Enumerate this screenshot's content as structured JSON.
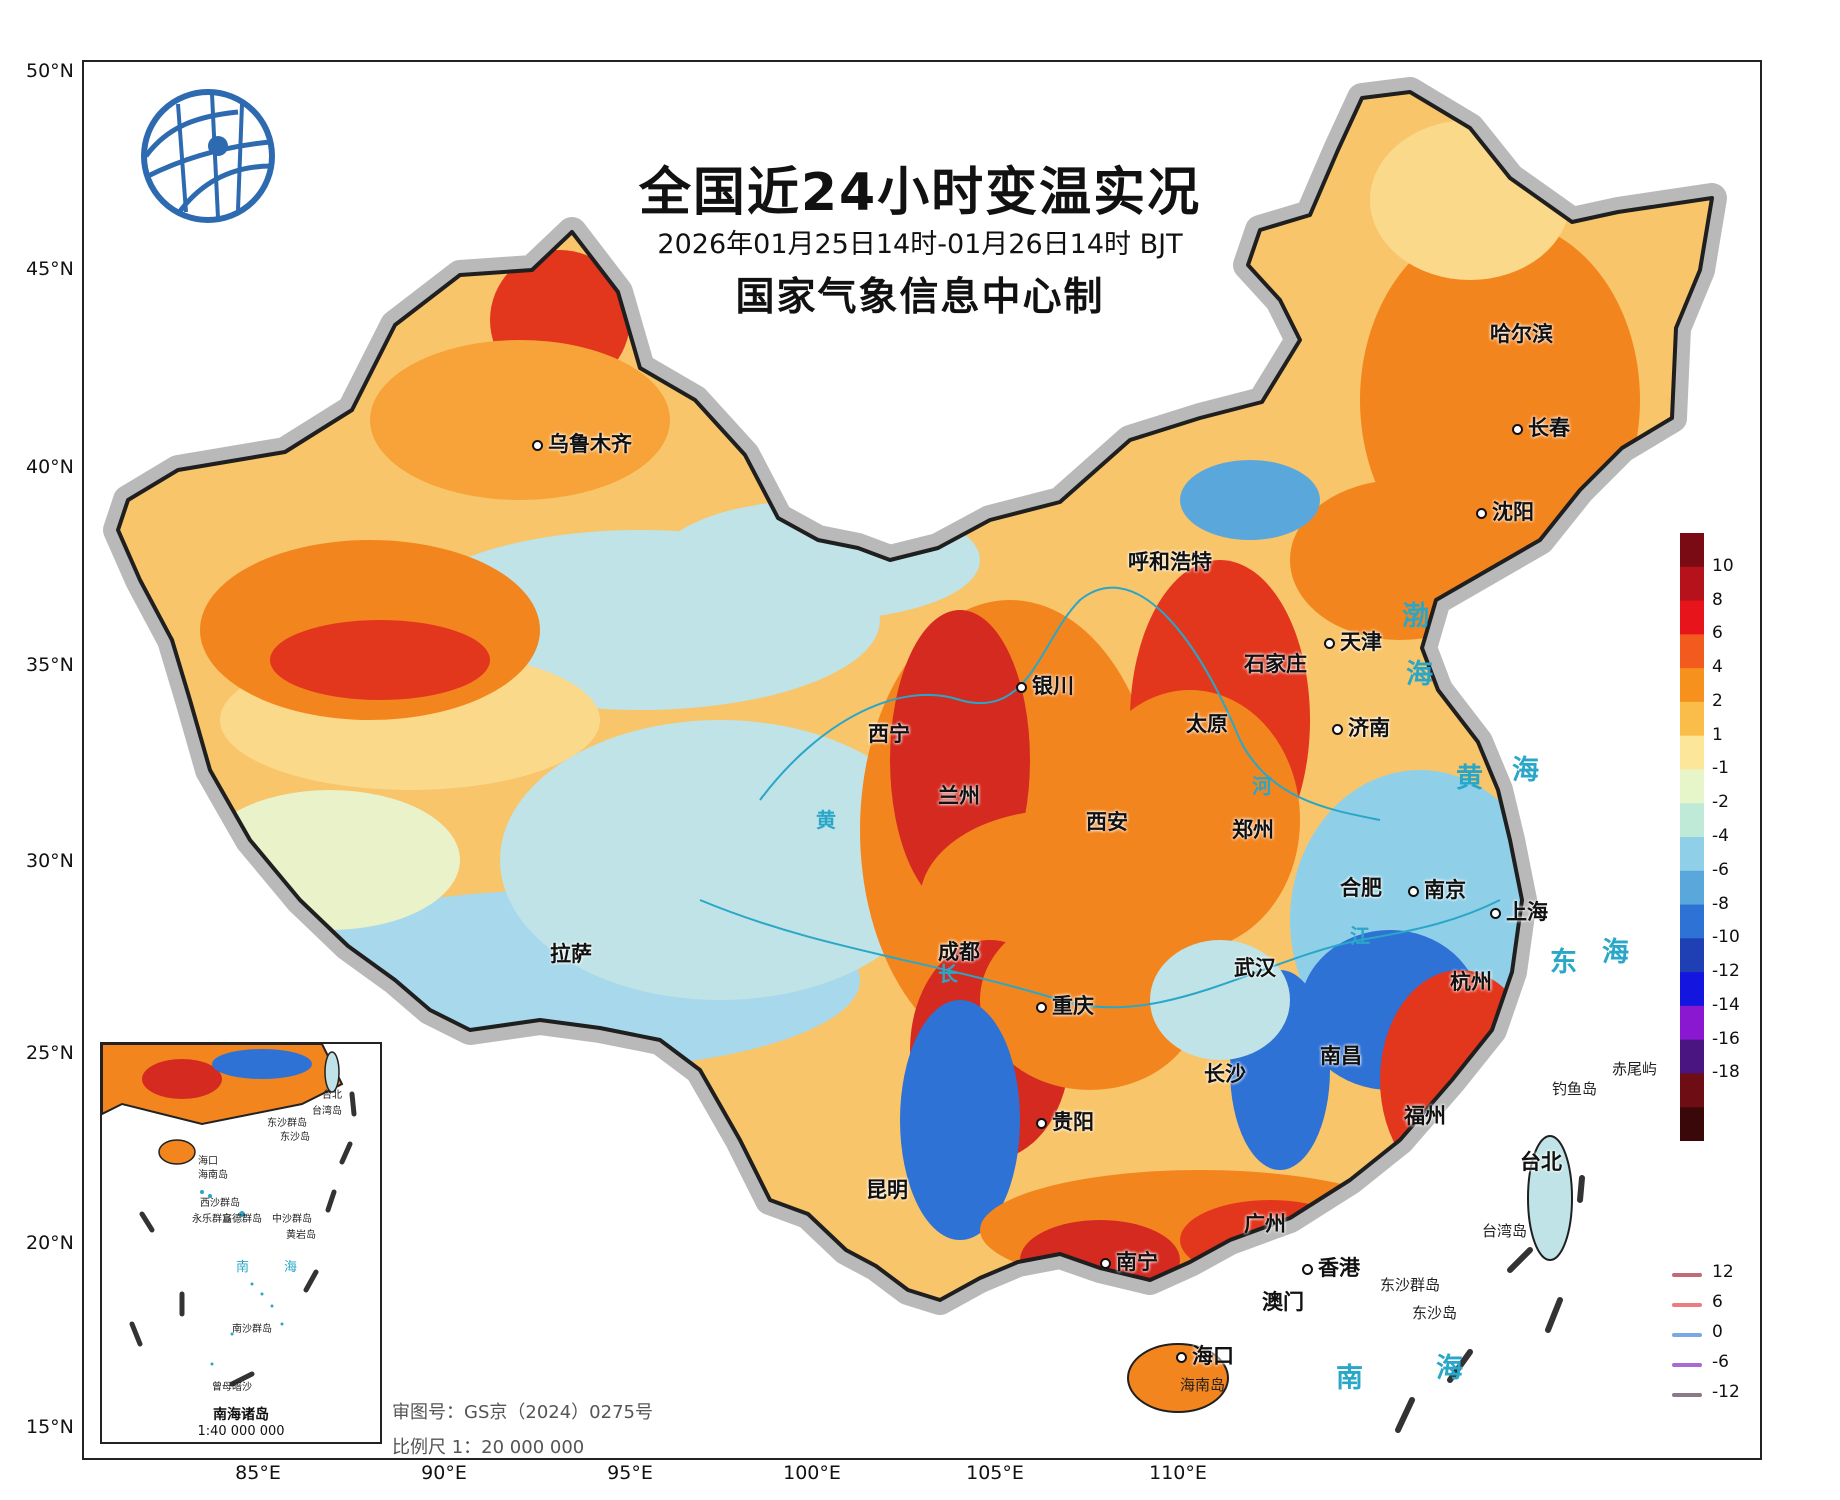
{
  "title": "全国近24小时变温实况",
  "subtitle": "2026年01月25日14时-01月26日14时 BJT",
  "producer": "国家气象信息中心制",
  "latitude_labels": [
    "50°N",
    "45°N",
    "40°N",
    "35°N",
    "30°N",
    "25°N",
    "20°N",
    "15°N"
  ],
  "longitude_labels": [
    "85°E",
    "90°E",
    "95°E",
    "100°E",
    "105°E",
    "110°E"
  ],
  "cities": [
    {
      "name": "乌鲁木齐"
    },
    {
      "name": "哈尔滨"
    },
    {
      "name": "长春"
    },
    {
      "name": "沈阳"
    },
    {
      "name": "呼和浩特"
    },
    {
      "name": "天津"
    },
    {
      "name": "银川"
    },
    {
      "name": "石家庄"
    },
    {
      "name": "西宁"
    },
    {
      "name": "太原"
    },
    {
      "name": "济南"
    },
    {
      "name": "兰州"
    },
    {
      "name": "郑州"
    },
    {
      "name": "西安"
    },
    {
      "name": "合肥"
    },
    {
      "name": "南京"
    },
    {
      "name": "上海"
    },
    {
      "name": "拉萨"
    },
    {
      "name": "成都"
    },
    {
      "name": "武汉"
    },
    {
      "name": "杭州"
    },
    {
      "name": "重庆"
    },
    {
      "name": "南昌"
    },
    {
      "name": "长沙"
    },
    {
      "name": "贵阳"
    },
    {
      "name": "福州"
    },
    {
      "name": "台北"
    },
    {
      "name": "昆明"
    },
    {
      "name": "广州"
    },
    {
      "name": "南宁"
    },
    {
      "name": "香港"
    },
    {
      "name": "澳门"
    },
    {
      "name": "海口"
    }
  ],
  "seas": [
    "渤",
    "海",
    "黄",
    "海",
    "东",
    "海",
    "南",
    "海"
  ],
  "rivers": [
    "黄",
    "河",
    "长",
    "江"
  ],
  "islands": [
    "赤尾屿",
    "钓鱼岛",
    "台湾岛",
    "东沙群岛",
    "东沙岛",
    "海南岛"
  ],
  "inset": {
    "title": "南海诸岛",
    "scale": "1:40 000 000",
    "labels": [
      "台北",
      "台湾岛",
      "东沙群岛",
      "东沙岛",
      "海口",
      "海南岛",
      "西沙群岛",
      "永乐群岛",
      "宣德群岛",
      "中沙群岛",
      "黄岩岛",
      "南",
      "海",
      "南沙群岛",
      "曾母暗沙"
    ]
  },
  "approval_number": "审图号：GS京（2024）0275号",
  "map_scale": "比例尺 1：20 000 000",
  "colorbar": {
    "labels": [
      "10",
      "8",
      "6",
      "4",
      "2",
      "1",
      "-1",
      "-2",
      "-4",
      "-6",
      "-8",
      "-10",
      "-12",
      "-14",
      "-16",
      "-18"
    ],
    "colors": [
      "#7a0a14",
      "#b5121b",
      "#e8141c",
      "#f25a1e",
      "#f7911d",
      "#fbbd4a",
      "#fbe69a",
      "#e7f6c9",
      "#bfead8",
      "#8fd0e8",
      "#5aa7dc",
      "#2e72d6",
      "#1f3fb4",
      "#1515e0",
      "#8a18d0",
      "#4a1580",
      "#6e0e14",
      "#3a0808"
    ]
  },
  "line_legend": [
    {
      "value": "12",
      "color": "#c26a78"
    },
    {
      "value": "6",
      "color": "#ea7c82"
    },
    {
      "value": "0",
      "color": "#7aa8e6"
    },
    {
      "value": "-6",
      "color": "#a76bd6"
    },
    {
      "value": "-12",
      "color": "#8a7a88"
    }
  ]
}
